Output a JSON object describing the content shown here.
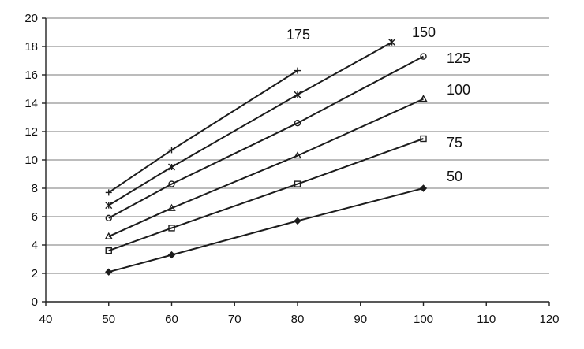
{
  "chart_data": {
    "type": "line",
    "title": "",
    "xlabel": "",
    "ylabel": "",
    "xlim": [
      40,
      120
    ],
    "ylim": [
      0,
      20
    ],
    "x_ticks": [
      40,
      50,
      60,
      70,
      80,
      90,
      100,
      110,
      120
    ],
    "y_ticks": [
      0,
      2,
      4,
      6,
      8,
      10,
      12,
      14,
      16,
      18,
      20
    ],
    "grid": "horizontal",
    "legend": "none",
    "series": [
      {
        "name": "175",
        "marker": "plus",
        "x": [
          50,
          60,
          80
        ],
        "y": [
          7.7,
          10.7,
          16.3
        ]
      },
      {
        "name": "150",
        "marker": "star",
        "x": [
          50,
          60,
          80,
          95
        ],
        "y": [
          6.8,
          9.5,
          14.6,
          18.3
        ]
      },
      {
        "name": "125",
        "marker": "circle",
        "x": [
          50,
          60,
          80,
          100
        ],
        "y": [
          5.9,
          8.3,
          12.6,
          17.3
        ]
      },
      {
        "name": "100",
        "marker": "triangle",
        "x": [
          50,
          60,
          80,
          100
        ],
        "y": [
          4.6,
          6.6,
          10.3,
          14.3
        ]
      },
      {
        "name": "75",
        "marker": "square",
        "x": [
          50,
          60,
          80,
          100
        ],
        "y": [
          3.6,
          5.2,
          8.3,
          11.5
        ]
      },
      {
        "name": "50",
        "marker": "diamond",
        "x": [
          50,
          60,
          80,
          100
        ],
        "y": [
          2.1,
          3.3,
          5.7,
          8.0
        ]
      }
    ]
  }
}
